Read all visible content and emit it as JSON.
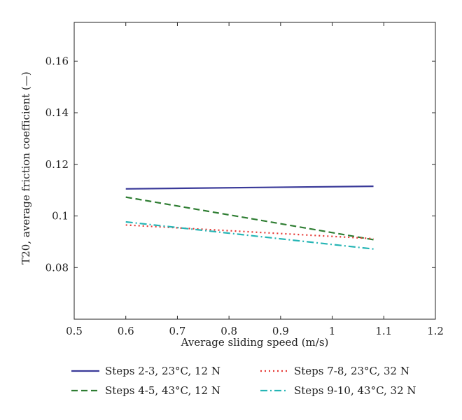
{
  "chart_data": {
    "type": "line",
    "title": "",
    "xlabel": "Average sliding speed (m/s)",
    "ylabel": "T20, average friction coefficient (—)",
    "xlim": [
      0.5,
      1.2
    ],
    "ylim": [
      0.06,
      0.175
    ],
    "xticks": [
      0.5,
      0.6,
      0.7,
      0.8,
      0.9,
      1,
      1.1,
      1.2
    ],
    "xtick_labels": [
      "0.5",
      "0.6",
      "0.7",
      "0.8",
      "0.9",
      "1",
      "1.1",
      "1.2"
    ],
    "yticks": [
      0.08,
      0.1,
      0.12,
      0.14,
      0.16
    ],
    "ytick_labels": [
      "0.08",
      "0.1",
      "0.12",
      "0.14",
      "0.16"
    ],
    "grid": false,
    "legend_position": "bottom",
    "series": [
      {
        "name": "Steps 2-3, 23°C, 12 N",
        "x": [
          0.6,
          1.08
        ],
        "y": [
          0.1105,
          0.1115
        ],
        "color": "#3a3a99",
        "dash": "solid"
      },
      {
        "name": "Steps 4-5, 43°C, 12 N",
        "x": [
          0.6,
          1.08
        ],
        "y": [
          0.1073,
          0.0908
        ],
        "color": "#2e7d32",
        "dash": "dashed"
      },
      {
        "name": "Steps 7-8, 23°C, 32 N",
        "x": [
          0.6,
          1.08
        ],
        "y": [
          0.0965,
          0.0912
        ],
        "color": "#e53935",
        "dash": "dotted"
      },
      {
        "name": "Steps 9-10, 43°C, 32 N",
        "x": [
          0.6,
          1.08
        ],
        "y": [
          0.0977,
          0.0872
        ],
        "color": "#26b5b5",
        "dash": "dashdot"
      }
    ]
  }
}
